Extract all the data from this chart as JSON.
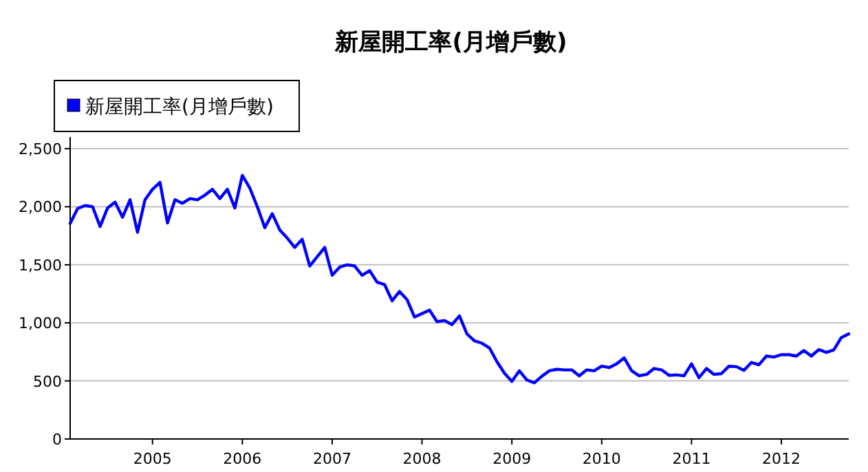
{
  "chart_data": {
    "type": "line",
    "title": "新屋開工率(月增戶數)",
    "x": [
      "2004-02",
      "2004-03",
      "2004-04",
      "2004-05",
      "2004-06",
      "2004-07",
      "2004-08",
      "2004-09",
      "2004-10",
      "2004-11",
      "2004-12",
      "2005-01",
      "2005-02",
      "2005-03",
      "2005-04",
      "2005-05",
      "2005-06",
      "2005-07",
      "2005-08",
      "2005-09",
      "2005-10",
      "2005-11",
      "2005-12",
      "2006-01",
      "2006-02",
      "2006-03",
      "2006-04",
      "2006-05",
      "2006-06",
      "2006-07",
      "2006-08",
      "2006-09",
      "2006-10",
      "2006-11",
      "2006-12",
      "2007-01",
      "2007-02",
      "2007-03",
      "2007-04",
      "2007-05",
      "2007-06",
      "2007-07",
      "2007-08",
      "2007-09",
      "2007-10",
      "2007-11",
      "2007-12",
      "2008-01",
      "2008-02",
      "2008-03",
      "2008-04",
      "2008-05",
      "2008-06",
      "2008-07",
      "2008-08",
      "2008-09",
      "2008-10",
      "2008-11",
      "2008-12",
      "2009-01",
      "2009-02",
      "2009-03",
      "2009-04",
      "2009-05",
      "2009-06",
      "2009-07",
      "2009-08",
      "2009-09",
      "2009-10",
      "2009-11",
      "2009-12",
      "2010-01",
      "2010-02",
      "2010-03",
      "2010-04",
      "2010-05",
      "2010-06",
      "2010-07",
      "2010-08",
      "2010-09",
      "2010-10",
      "2010-11",
      "2010-12",
      "2011-01",
      "2011-02",
      "2011-03",
      "2011-04",
      "2011-05",
      "2011-06",
      "2011-07",
      "2011-08",
      "2011-09",
      "2011-10",
      "2011-11",
      "2011-12",
      "2012-01",
      "2012-02",
      "2012-03",
      "2012-04",
      "2012-05",
      "2012-06",
      "2012-07",
      "2012-08",
      "2012-09",
      "2012-10"
    ],
    "series": [
      {
        "name": "新屋開工率(月增戶數)",
        "color": "#0000ff",
        "values": [
          1856,
          1985,
          2010,
          2000,
          1830,
          1990,
          2040,
          1910,
          2060,
          1780,
          2060,
          2150,
          2210,
          1860,
          2060,
          2030,
          2070,
          2060,
          2100,
          2150,
          2070,
          2150,
          1990,
          2270,
          2160,
          2000,
          1820,
          1940,
          1800,
          1730,
          1650,
          1720,
          1490,
          1570,
          1650,
          1410,
          1480,
          1500,
          1490,
          1410,
          1450,
          1350,
          1330,
          1190,
          1270,
          1200,
          1050,
          1080,
          1110,
          1010,
          1020,
          985,
          1060,
          905,
          845,
          825,
          785,
          667,
          567,
          496,
          587,
          508,
          484,
          540,
          587,
          600,
          595,
          595,
          544,
          595,
          587,
          627,
          615,
          647,
          698,
          587,
          544,
          556,
          607,
          595,
          548,
          552,
          544,
          647,
          528,
          607,
          556,
          563,
          627,
          623,
          591,
          659,
          639,
          714,
          706,
          726,
          726,
          714,
          762,
          714,
          770,
          746,
          766,
          873,
          905
        ]
      }
    ],
    "xlim": [
      "2004-02",
      "2012-10"
    ],
    "xticks": [
      {
        "value": "2005",
        "label": "2005"
      },
      {
        "value": "2006",
        "label": "2006"
      },
      {
        "value": "2007",
        "label": "2007"
      },
      {
        "value": "2008",
        "label": "2008"
      },
      {
        "value": "2009",
        "label": "2009"
      },
      {
        "value": "2010",
        "label": "2010"
      },
      {
        "value": "2011",
        "label": "2011"
      },
      {
        "value": "2012",
        "label": "2012"
      }
    ],
    "ylim": [
      0,
      2600
    ],
    "yticks": [
      0,
      500,
      {
        "value": 1000,
        "label": "1,000"
      },
      {
        "value": 1500,
        "label": "1,500"
      },
      {
        "value": 2000,
        "label": "2,000"
      },
      {
        "value": 2500,
        "label": "2,500"
      }
    ],
    "grid": "y",
    "legend": "top left",
    "marker": "none",
    "line_style": "solid"
  }
}
